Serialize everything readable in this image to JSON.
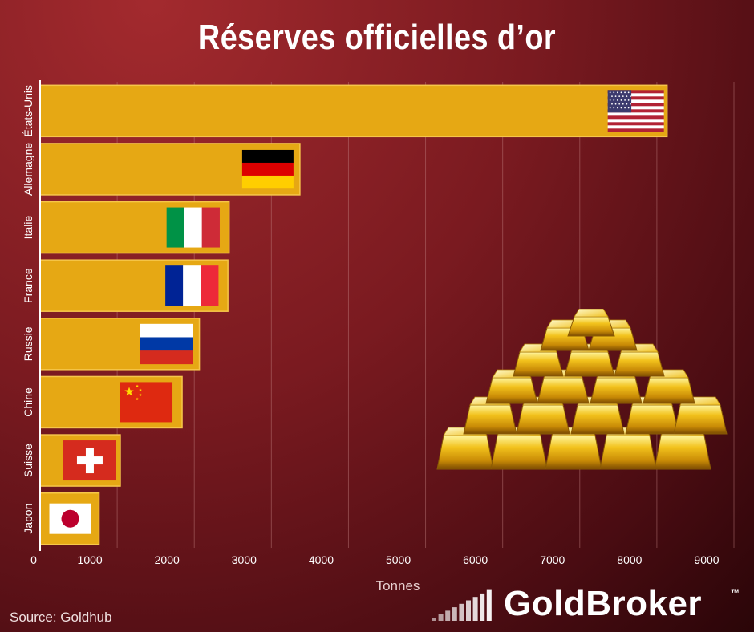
{
  "title": "Réserves officielles d’or",
  "source": "Source: Goldhub",
  "brand": {
    "name": "GoldBroker",
    "tm": "™"
  },
  "chart_data": {
    "type": "bar",
    "orientation": "horizontal",
    "title": "Réserves officielles d’or",
    "xlabel": "Tonnes",
    "ylabel": "",
    "categories": [
      "États-Unis",
      "Allemagne",
      "Italie",
      "France",
      "Russie",
      "Chine",
      "Suisse",
      "Japon"
    ],
    "values": [
      8133,
      3370,
      2452,
      2436,
      2066,
      1842,
      1040,
      765
    ],
    "flags": [
      "us-flag",
      "germany-flag",
      "italy-flag",
      "france-flag",
      "russia-flag",
      "china-flag",
      "switzerland-flag",
      "japan-flag"
    ],
    "xlim": [
      0,
      9000
    ],
    "xticks": [
      0,
      1000,
      2000,
      3000,
      4000,
      5000,
      6000,
      7000,
      8000,
      9000
    ],
    "grid": true,
    "colors": {
      "bar": "#e6a814",
      "bar_inner": "#f2b418",
      "grid": "#c08080",
      "text": "#ffffff"
    }
  },
  "decoration": {
    "gold_bars_icon": "gold-bars-pile-icon"
  }
}
